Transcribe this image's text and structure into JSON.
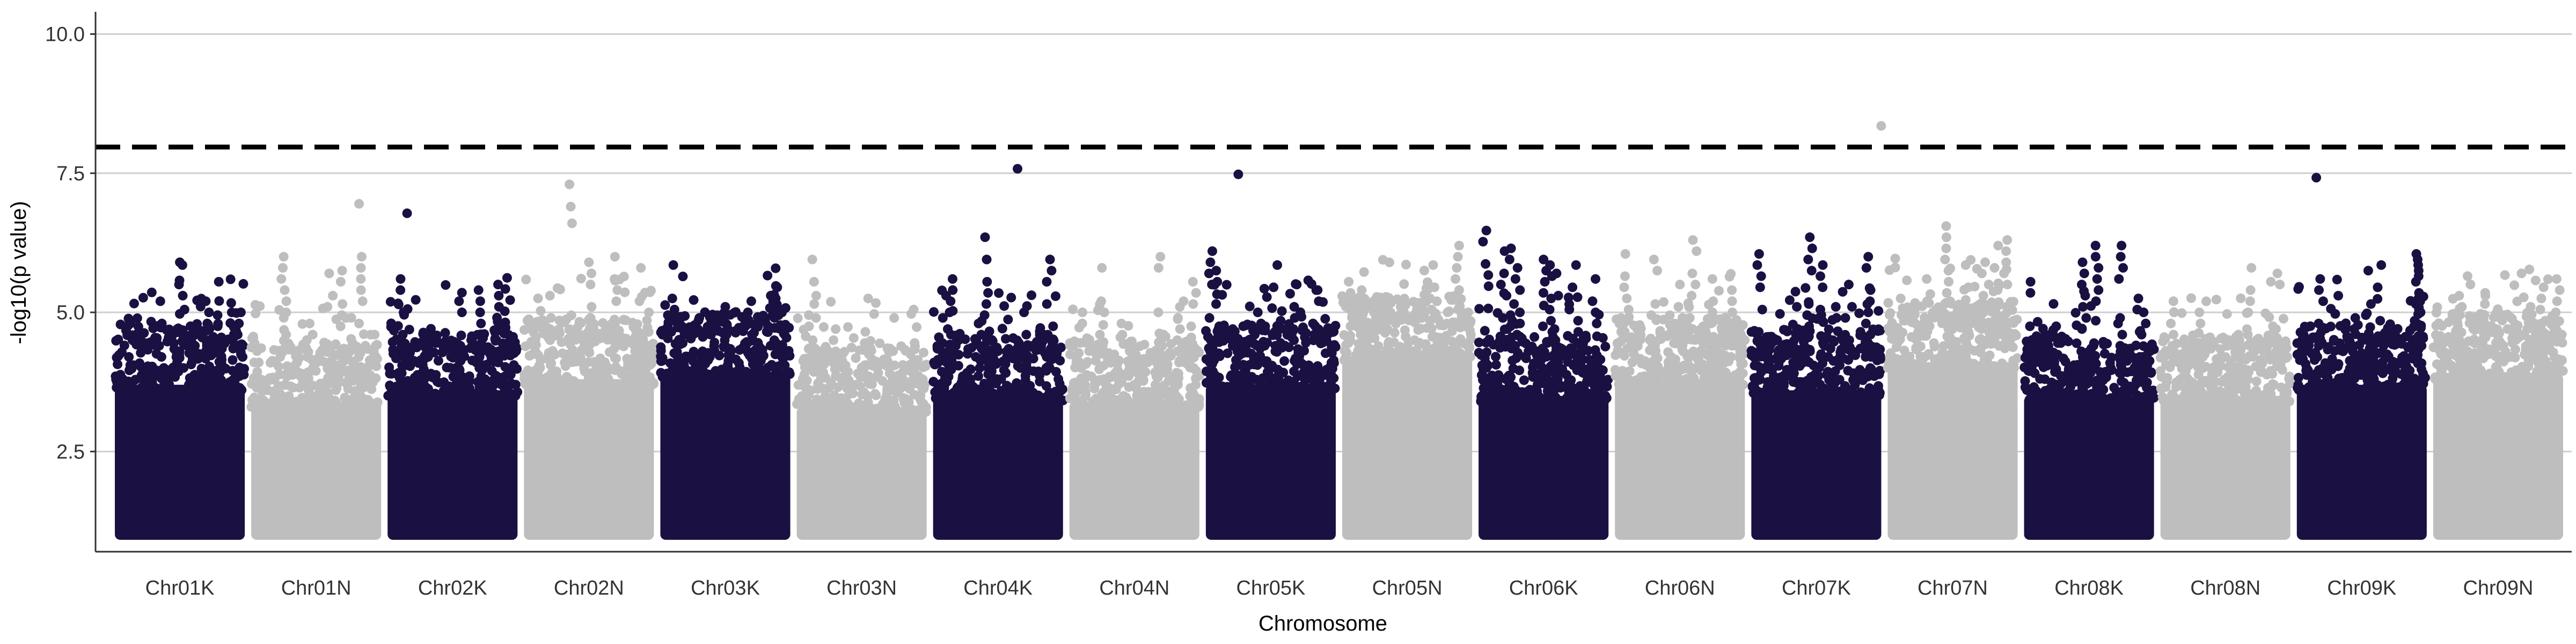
{
  "chart_data": {
    "type": "scatter",
    "subtype": "manhattan",
    "title": "",
    "xlabel": "Chromosome",
    "ylabel": "-log10(p value)",
    "ylim": [
      0.7,
      10.4
    ],
    "yticks": [
      2.5,
      5.0,
      7.5,
      10.0
    ],
    "ytick_labels": [
      "2.5",
      "5.0",
      "7.5",
      "10.0"
    ],
    "grid": "horizontal major",
    "legend": "none",
    "colors": {
      "odd": "#1b1042",
      "even": "#bebebe",
      "threshold": "#000000",
      "grid": "#cfcfcf"
    },
    "threshold": {
      "value": 7.97,
      "style": "dashed"
    },
    "min_value": 1.0,
    "categories": [
      "Chr01K",
      "Chr01N",
      "Chr02K",
      "Chr02N",
      "Chr03K",
      "Chr03N",
      "Chr04K",
      "Chr04N",
      "Chr05K",
      "Chr05N",
      "Chr06K",
      "Chr06N",
      "Chr07K",
      "Chr07N",
      "Chr08K",
      "Chr08N",
      "Chr09K",
      "Chr09N"
    ],
    "chromosomes": [
      {
        "name": "Chr01K",
        "color": "#1b1042",
        "dense_top": 4.1,
        "peaks": [
          [
            0.12,
            4.8
          ],
          [
            0.35,
            5.2
          ],
          [
            0.5,
            5.9
          ],
          [
            0.52,
            5.85
          ],
          [
            0.62,
            4.6
          ],
          [
            0.7,
            5.2
          ],
          [
            0.8,
            5.55
          ],
          [
            0.9,
            5.0
          ],
          [
            0.97,
            5.0
          ]
        ]
      },
      {
        "name": "Chr01N",
        "color": "#bebebe",
        "dense_top": 3.8,
        "peaks": [
          [
            0.25,
            6.0
          ],
          [
            0.45,
            4.8
          ],
          [
            0.6,
            5.7
          ],
          [
            0.7,
            5.75
          ],
          [
            0.85,
            6.0
          ],
          [
            0.83,
            6.95
          ],
          [
            0.95,
            4.6
          ]
        ]
      },
      {
        "name": "Chr02K",
        "color": "#1b1042",
        "dense_top": 4.0,
        "peaks": [
          [
            0.1,
            5.6
          ],
          [
            0.15,
            6.78
          ],
          [
            0.3,
            4.6
          ],
          [
            0.55,
            5.2
          ],
          [
            0.7,
            5.4
          ],
          [
            0.85,
            5.5
          ],
          [
            0.92,
            5.62
          ]
        ]
      },
      {
        "name": "Chr02N",
        "color": "#bebebe",
        "dense_top": 4.2,
        "peaks": [
          [
            0.2,
            5.3
          ],
          [
            0.35,
            7.3
          ],
          [
            0.36,
            6.9
          ],
          [
            0.37,
            6.6
          ],
          [
            0.5,
            5.9
          ],
          [
            0.7,
            6.0
          ],
          [
            0.9,
            5.8
          ]
        ]
      },
      {
        "name": "Chr03K",
        "color": "#1b1042",
        "dense_top": 4.3,
        "peaks": [
          [
            0.1,
            5.85
          ],
          [
            0.3,
            4.9
          ],
          [
            0.5,
            5.1
          ],
          [
            0.7,
            5.2
          ],
          [
            0.85,
            5.3
          ],
          [
            0.9,
            5.45
          ]
        ]
      },
      {
        "name": "Chr03N",
        "color": "#bebebe",
        "dense_top": 3.7,
        "peaks": [
          [
            0.12,
            5.95
          ],
          [
            0.15,
            5.3
          ],
          [
            0.3,
            4.7
          ],
          [
            0.55,
            5.25
          ],
          [
            0.75,
            4.9
          ],
          [
            0.9,
            5.05
          ]
        ]
      },
      {
        "name": "Chr04K",
        "color": "#1b1042",
        "dense_top": 3.9,
        "peaks": [
          [
            0.1,
            5.3
          ],
          [
            0.15,
            5.6
          ],
          [
            0.35,
            4.8
          ],
          [
            0.4,
            6.35
          ],
          [
            0.65,
            7.58
          ],
          [
            0.7,
            5.0
          ],
          [
            0.9,
            5.95
          ],
          [
            0.85,
            4.6
          ]
        ]
      },
      {
        "name": "Chr04N",
        "color": "#bebebe",
        "dense_top": 3.8,
        "peaks": [
          [
            0.1,
            5.0
          ],
          [
            0.25,
            5.8
          ],
          [
            0.4,
            4.8
          ],
          [
            0.7,
            6.0
          ],
          [
            0.85,
            5.1
          ],
          [
            0.95,
            5.55
          ]
        ]
      },
      {
        "name": "Chr05K",
        "color": "#1b1042",
        "dense_top": 4.1,
        "peaks": [
          [
            0.05,
            6.1
          ],
          [
            0.08,
            5.75
          ],
          [
            0.25,
            7.48
          ],
          [
            0.4,
            5.0
          ],
          [
            0.55,
            5.85
          ],
          [
            0.7,
            5.5
          ],
          [
            0.85,
            5.4
          ]
        ]
      },
      {
        "name": "Chr05N",
        "color": "#bebebe",
        "dense_top": 4.6,
        "peaks": [
          [
            0.05,
            5.55
          ],
          [
            0.15,
            5.4
          ],
          [
            0.3,
            5.2
          ],
          [
            0.45,
            5.1
          ],
          [
            0.7,
            5.85
          ],
          [
            0.9,
            6.2
          ],
          [
            0.97,
            5.0
          ]
        ]
      },
      {
        "name": "Chr06K",
        "color": "#1b1042",
        "dense_top": 3.9,
        "peaks": [
          [
            0.06,
            6.47
          ],
          [
            0.2,
            6.1
          ],
          [
            0.25,
            6.15
          ],
          [
            0.3,
            5.8
          ],
          [
            0.5,
            5.95
          ],
          [
            0.55,
            5.85
          ],
          [
            0.6,
            5.7
          ],
          [
            0.75,
            5.85
          ],
          [
            0.9,
            5.6
          ]
        ]
      },
      {
        "name": "Chr06N",
        "color": "#bebebe",
        "dense_top": 4.2,
        "peaks": [
          [
            0.08,
            6.05
          ],
          [
            0.3,
            5.95
          ],
          [
            0.5,
            5.5
          ],
          [
            0.6,
            6.3
          ],
          [
            0.75,
            5.6
          ],
          [
            0.9,
            5.4
          ]
        ]
      },
      {
        "name": "Chr07K",
        "color": "#1b1042",
        "dense_top": 4.0,
        "peaks": [
          [
            0.06,
            6.05
          ],
          [
            0.2,
            4.5
          ],
          [
            0.35,
            5.1
          ],
          [
            0.45,
            6.35
          ],
          [
            0.55,
            5.85
          ],
          [
            0.65,
            5.1
          ],
          [
            0.75,
            5.5
          ],
          [
            0.9,
            6.0
          ]
        ]
      },
      {
        "name": "Chr07N",
        "color": "#bebebe",
        "dense_top": 4.5,
        "peaks": [
          [
            -0.05,
            8.35
          ],
          [
            0.1,
            5.25
          ],
          [
            0.3,
            5.6
          ],
          [
            0.45,
            6.55
          ],
          [
            0.6,
            5.85
          ],
          [
            0.75,
            5.9
          ],
          [
            0.85,
            6.2
          ],
          [
            0.92,
            6.3
          ]
        ]
      },
      {
        "name": "Chr08K",
        "color": "#1b1042",
        "dense_top": 3.9,
        "peaks": [
          [
            0.05,
            5.55
          ],
          [
            0.2,
            4.6
          ],
          [
            0.45,
            5.9
          ],
          [
            0.55,
            6.2
          ],
          [
            0.75,
            6.2
          ],
          [
            0.88,
            5.25
          ],
          [
            0.92,
            5.0
          ]
        ]
      },
      {
        "name": "Chr08N",
        "color": "#bebebe",
        "dense_top": 3.9,
        "peaks": [
          [
            0.1,
            5.2
          ],
          [
            0.3,
            5.0
          ],
          [
            0.6,
            4.6
          ],
          [
            0.7,
            5.8
          ],
          [
            0.85,
            5.55
          ],
          [
            0.9,
            5.7
          ]
        ]
      },
      {
        "name": "Chr09K",
        "color": "#1b1042",
        "dense_top": 4.1,
        "peaks": [
          [
            0.15,
            7.42
          ],
          [
            0.18,
            5.6
          ],
          [
            0.45,
            4.9
          ],
          [
            0.55,
            5.75
          ],
          [
            0.65,
            5.85
          ],
          [
            0.92,
            6.05
          ],
          [
            0.93,
            5.95
          ],
          [
            0.95,
            5.2
          ]
        ]
      },
      {
        "name": "Chr09N",
        "color": "#bebebe",
        "dense_top": 4.3,
        "peaks": [
          [
            0.2,
            5.3
          ],
          [
            0.4,
            5.35
          ],
          [
            0.6,
            4.9
          ],
          [
            0.75,
            5.1
          ],
          [
            0.85,
            5.45
          ],
          [
            0.95,
            5.6
          ]
        ]
      }
    ]
  }
}
